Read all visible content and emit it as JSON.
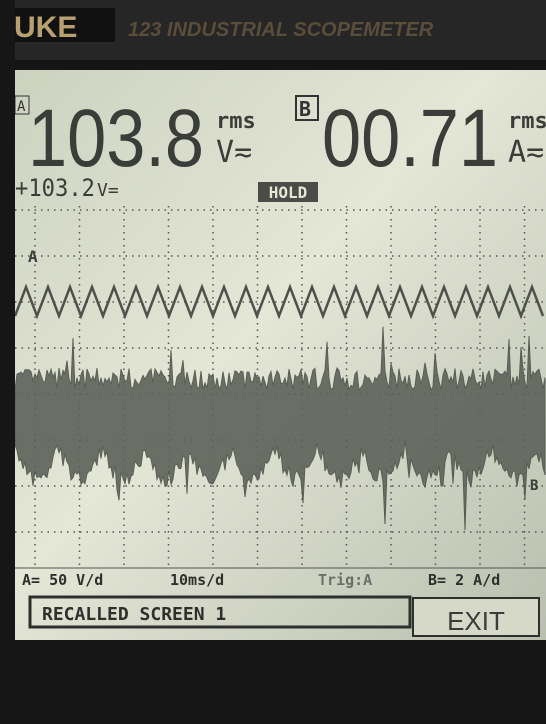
{
  "header": {
    "brand": "UKE",
    "model": "123 INDUSTRIAL SCOPEMETER"
  },
  "readings": {
    "a": {
      "channel": "A",
      "value": "103.8",
      "mode": "rms",
      "unit": "V≂"
    },
    "b": {
      "channel": "B",
      "value": "00.71",
      "mode": "rms",
      "unit": "A≂"
    },
    "secondary": {
      "value": "+103.2",
      "unit": "V="
    },
    "status": "HOLD"
  },
  "trace_labels": {
    "a": "A",
    "b": "B"
  },
  "settings": [
    "A= 50 V/d",
    "10ms/d",
    "Trig:A",
    "B= 2 A/d"
  ],
  "menu": {
    "message": "RECALLED SCREEN 1",
    "button": "EXIT"
  }
}
